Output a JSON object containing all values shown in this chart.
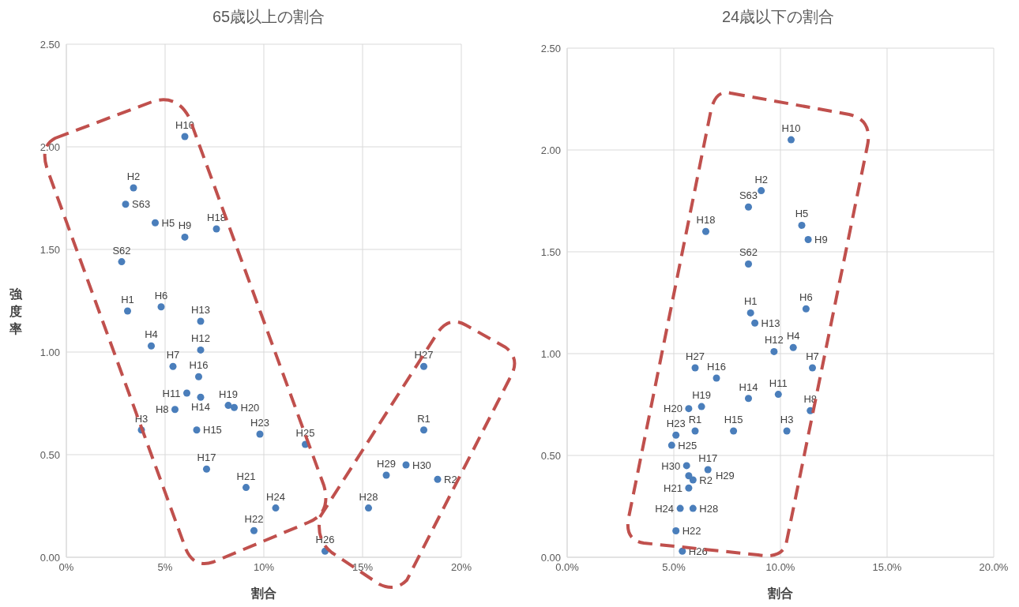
{
  "chart_data": [
    {
      "type": "scatter",
      "title": "65歳以上の割合",
      "xlabel": "割合",
      "ylabel": "強度率",
      "grid": true,
      "xlim": [
        0,
        20
      ],
      "xticks": [
        {
          "value": 0,
          "label": "0%"
        },
        {
          "value": 5,
          "label": "5%"
        },
        {
          "value": 10,
          "label": "10%"
        },
        {
          "value": 15,
          "label": "15%"
        },
        {
          "value": 20,
          "label": "20%"
        }
      ],
      "ylim": [
        0,
        2.5
      ],
      "yticks": [
        {
          "value": 0,
          "label": "0.00"
        },
        {
          "value": 0.5,
          "label": "0.50"
        },
        {
          "value": 1,
          "label": "1.00"
        },
        {
          "value": 1.5,
          "label": "1.50"
        },
        {
          "value": 2,
          "label": "2.00"
        },
        {
          "value": 2.5,
          "label": "2.50"
        }
      ],
      "series": [
        {
          "color": "#4a7ebb",
          "x": [
            6.0,
            3.4,
            3.0,
            4.5,
            6.0,
            7.6,
            2.8,
            3.1,
            4.8,
            6.8,
            4.3,
            6.8,
            5.4,
            6.7,
            6.1,
            6.8,
            5.5,
            8.2,
            8.5,
            3.8,
            6.6,
            9.8,
            12.1,
            7.1,
            9.1,
            10.6,
            9.5,
            13.1,
            15.3,
            16.2,
            17.2,
            18.1,
            18.1,
            18.8
          ],
          "values": [
            2.05,
            1.8,
            1.72,
            1.63,
            1.56,
            1.6,
            1.44,
            1.2,
            1.22,
            1.15,
            1.03,
            1.01,
            0.93,
            0.88,
            0.8,
            0.78,
            0.72,
            0.74,
            0.73,
            0.62,
            0.62,
            0.6,
            0.55,
            0.43,
            0.34,
            0.24,
            0.13,
            0.03,
            0.24,
            0.4,
            0.45,
            0.93,
            0.62,
            0.38
          ]
        }
      ],
      "annotations": [
        {
          "text": "H10",
          "x": 6.0,
          "y": 2.05
        },
        {
          "text": "H2",
          "x": 3.4,
          "y": 1.8
        },
        {
          "text": "S63",
          "x": 3.0,
          "y": 1.72
        },
        {
          "text": "H5",
          "x": 4.5,
          "y": 1.63
        },
        {
          "text": "H9",
          "x": 6.0,
          "y": 1.56
        },
        {
          "text": "H18",
          "x": 7.6,
          "y": 1.6
        },
        {
          "text": "S62",
          "x": 2.8,
          "y": 1.44
        },
        {
          "text": "H1",
          "x": 3.1,
          "y": 1.2
        },
        {
          "text": "H6",
          "x": 4.8,
          "y": 1.22
        },
        {
          "text": "H13",
          "x": 6.8,
          "y": 1.15
        },
        {
          "text": "H4",
          "x": 4.3,
          "y": 1.03
        },
        {
          "text": "H12",
          "x": 6.8,
          "y": 1.01
        },
        {
          "text": "H7",
          "x": 5.4,
          "y": 0.93
        },
        {
          "text": "H16",
          "x": 6.7,
          "y": 0.88
        },
        {
          "text": "H11",
          "x": 6.1,
          "y": 0.8
        },
        {
          "text": "H14",
          "x": 6.8,
          "y": 0.78
        },
        {
          "text": "H8",
          "x": 5.5,
          "y": 0.72
        },
        {
          "text": "H19",
          "x": 8.2,
          "y": 0.74
        },
        {
          "text": "H20",
          "x": 8.5,
          "y": 0.73
        },
        {
          "text": "H3",
          "x": 3.8,
          "y": 0.62
        },
        {
          "text": "H15",
          "x": 6.6,
          "y": 0.62
        },
        {
          "text": "H23",
          "x": 9.8,
          "y": 0.6
        },
        {
          "text": "H25",
          "x": 12.1,
          "y": 0.55
        },
        {
          "text": "H17",
          "x": 7.1,
          "y": 0.43
        },
        {
          "text": "H21",
          "x": 9.1,
          "y": 0.34
        },
        {
          "text": "H24",
          "x": 10.6,
          "y": 0.24
        },
        {
          "text": "H22",
          "x": 9.5,
          "y": 0.13
        },
        {
          "text": "H26",
          "x": 13.1,
          "y": 0.03
        },
        {
          "text": "H28",
          "x": 15.3,
          "y": 0.24
        },
        {
          "text": "H29",
          "x": 16.2,
          "y": 0.4
        },
        {
          "text": "H30",
          "x": 17.2,
          "y": 0.45
        },
        {
          "text": "H27",
          "x": 18.1,
          "y": 0.93
        },
        {
          "text": "R1",
          "x": 18.1,
          "y": 0.62
        },
        {
          "text": "R2",
          "x": 18.8,
          "y": 0.38
        }
      ]
    },
    {
      "type": "scatter",
      "title": "24歳以下の割合",
      "xlabel": "割合",
      "grid": true,
      "xlim": [
        0,
        20
      ],
      "xticks": [
        {
          "value": 0,
          "label": "0.0%"
        },
        {
          "value": 5,
          "label": "5.0%"
        },
        {
          "value": 10,
          "label": "10.0%"
        },
        {
          "value": 15,
          "label": "15.0%"
        },
        {
          "value": 20,
          "label": "20.0%"
        }
      ],
      "ylim": [
        0,
        2.5
      ],
      "yticks": [
        {
          "value": 0,
          "label": "0.00"
        },
        {
          "value": 0.5,
          "label": "0.50"
        },
        {
          "value": 1,
          "label": "1.00"
        },
        {
          "value": 1.5,
          "label": "1.50"
        },
        {
          "value": 2,
          "label": "2.00"
        },
        {
          "value": 2.5,
          "label": "2.50"
        }
      ],
      "series": [
        {
          "color": "#4a7ebb",
          "x": [
            10.5,
            9.1,
            8.5,
            11.0,
            11.3,
            6.5,
            8.5,
            8.6,
            11.2,
            8.8,
            10.6,
            9.7,
            11.5,
            6.0,
            7.0,
            9.9,
            8.5,
            11.4,
            10.3,
            7.8,
            6.3,
            5.7,
            6.0,
            5.1,
            4.9,
            5.6,
            5.7,
            5.9,
            5.7,
            6.6,
            5.3,
            5.9,
            5.1,
            5.4
          ],
          "values": [
            2.05,
            1.8,
            1.72,
            1.63,
            1.56,
            1.6,
            1.44,
            1.2,
            1.22,
            1.15,
            1.03,
            1.01,
            0.93,
            0.93,
            0.88,
            0.8,
            0.78,
            0.72,
            0.62,
            0.62,
            0.74,
            0.73,
            0.62,
            0.6,
            0.55,
            0.45,
            0.4,
            0.38,
            0.34,
            0.43,
            0.24,
            0.24,
            0.13,
            0.03
          ]
        }
      ],
      "annotations": [
        {
          "text": "H10",
          "x": 10.5,
          "y": 2.05
        },
        {
          "text": "H2",
          "x": 9.1,
          "y": 1.8
        },
        {
          "text": "S63",
          "x": 8.5,
          "y": 1.72
        },
        {
          "text": "H5",
          "x": 11.0,
          "y": 1.63
        },
        {
          "text": "H9",
          "x": 11.3,
          "y": 1.56
        },
        {
          "text": "H18",
          "x": 6.5,
          "y": 1.6
        },
        {
          "text": "S62",
          "x": 8.5,
          "y": 1.44
        },
        {
          "text": "H1",
          "x": 8.6,
          "y": 1.2
        },
        {
          "text": "H6",
          "x": 11.2,
          "y": 1.22
        },
        {
          "text": "H13",
          "x": 8.8,
          "y": 1.15
        },
        {
          "text": "H4",
          "x": 10.6,
          "y": 1.03
        },
        {
          "text": "H12",
          "x": 9.7,
          "y": 1.01
        },
        {
          "text": "H7",
          "x": 11.5,
          "y": 0.93
        },
        {
          "text": "H27",
          "x": 6.0,
          "y": 0.93
        },
        {
          "text": "H16",
          "x": 7.0,
          "y": 0.88
        },
        {
          "text": "H11",
          "x": 9.9,
          "y": 0.8
        },
        {
          "text": "H14",
          "x": 8.5,
          "y": 0.78
        },
        {
          "text": "H8",
          "x": 11.4,
          "y": 0.72
        },
        {
          "text": "H3",
          "x": 10.3,
          "y": 0.62
        },
        {
          "text": "H15",
          "x": 7.8,
          "y": 0.62
        },
        {
          "text": "H19",
          "x": 6.3,
          "y": 0.74
        },
        {
          "text": "H20",
          "x": 5.7,
          "y": 0.73
        },
        {
          "text": "R1",
          "x": 6.0,
          "y": 0.62
        },
        {
          "text": "H23",
          "x": 5.1,
          "y": 0.6
        },
        {
          "text": "H25",
          "x": 4.9,
          "y": 0.55
        },
        {
          "text": "H30",
          "x": 5.6,
          "y": 0.45
        },
        {
          "text": "H29",
          "x": 5.7,
          "y": 0.4
        },
        {
          "text": "R2",
          "x": 5.9,
          "y": 0.38
        },
        {
          "text": "H21",
          "x": 5.7,
          "y": 0.34
        },
        {
          "text": "H17",
          "x": 6.6,
          "y": 0.43
        },
        {
          "text": "H24",
          "x": 5.3,
          "y": 0.24
        },
        {
          "text": "H28",
          "x": 5.9,
          "y": 0.24
        },
        {
          "text": "H22",
          "x": 5.1,
          "y": 0.13
        },
        {
          "text": "H26",
          "x": 5.4,
          "y": 0.03
        }
      ]
    }
  ]
}
